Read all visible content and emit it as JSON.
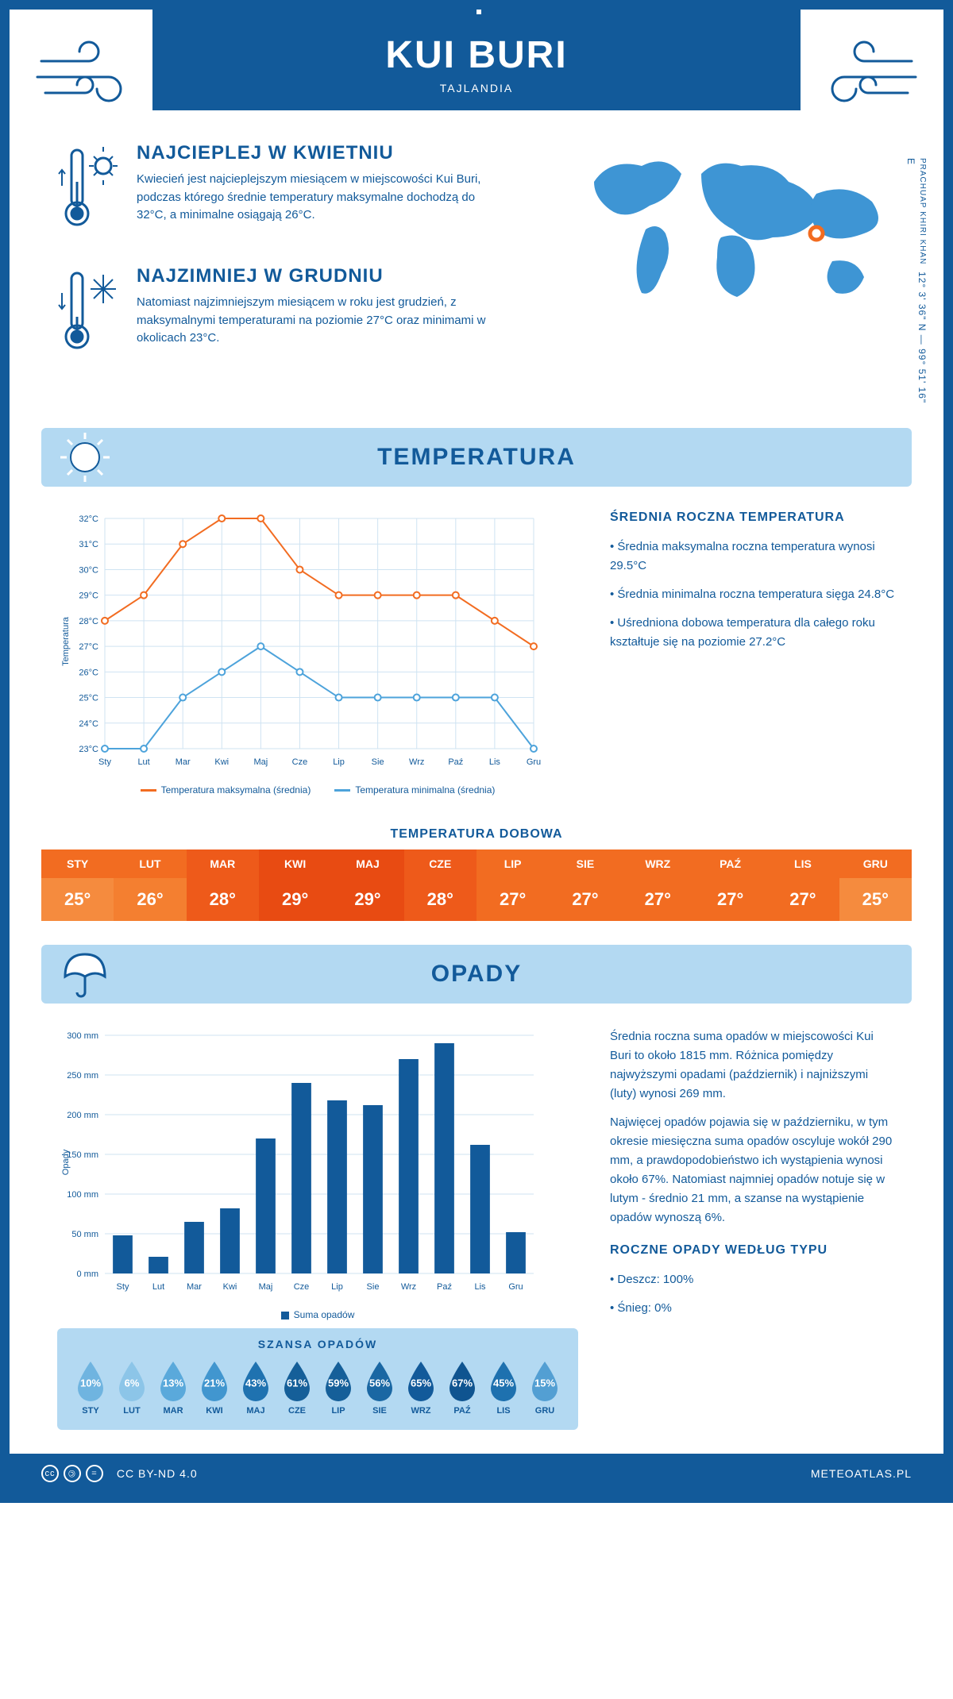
{
  "header": {
    "title": "KUI BURI",
    "subtitle": "TAJLANDIA"
  },
  "coords": {
    "line": "12° 3' 36\" N — 99° 51' 16\" E",
    "region": "PRACHUAP KHIRI KHAN"
  },
  "warmest": {
    "title": "NAJCIEPLEJ W KWIETNIU",
    "text": "Kwiecień jest najcieplejszym miesiącem w miejscowości Kui Buri, podczas którego średnie temperatury maksymalne dochodzą do 32°C, a minimalne osiągają 26°C."
  },
  "coldest": {
    "title": "NAJZIMNIEJ W GRUDNIU",
    "text": "Natomiast najzimniejszym miesiącem w roku jest grudzień, z maksymalnymi temperaturami na poziomie 27°C oraz minimami w okolicach 23°C."
  },
  "temp_section": {
    "banner": "TEMPERATURA",
    "side_title": "ŚREDNIA ROCZNA TEMPERATURA",
    "bullets": [
      "• Średnia maksymalna roczna temperatura wynosi 29.5°C",
      "• Średnia minimalna roczna temperatura sięga 24.8°C",
      "• Uśredniona dobowa temperatura dla całego roku kształtuje się na poziomie 27.2°C"
    ],
    "chart": {
      "type": "line",
      "months": [
        "Sty",
        "Lut",
        "Mar",
        "Kwi",
        "Maj",
        "Cze",
        "Lip",
        "Sie",
        "Wrz",
        "Paź",
        "Lis",
        "Gru"
      ],
      "ylabel": "Temperatura",
      "ylim": [
        23,
        32
      ],
      "ytick_step": 1,
      "series": [
        {
          "name": "Temperatura maksymalna (średnia)",
          "color": "#f26c21",
          "values": [
            28,
            29,
            31,
            32,
            32,
            30,
            29,
            29,
            29,
            29,
            28,
            27
          ]
        },
        {
          "name": "Temperatura minimalna (średnia)",
          "color": "#4da3db",
          "values": [
            23,
            23,
            25,
            26,
            27,
            26,
            25,
            25,
            25,
            25,
            25,
            23
          ]
        }
      ],
      "grid_color": "#cfe3f2",
      "background_color": "#ffffff",
      "line_width": 2,
      "marker": "circle",
      "marker_size": 4
    },
    "dobowa_title": "TEMPERATURA DOBOWA",
    "daily_table": {
      "months": [
        "STY",
        "LUT",
        "MAR",
        "KWI",
        "MAJ",
        "CZE",
        "LIP",
        "SIE",
        "WRZ",
        "PAŹ",
        "LIS",
        "GRU"
      ],
      "values": [
        "25°",
        "26°",
        "28°",
        "29°",
        "29°",
        "28°",
        "27°",
        "27°",
        "27°",
        "27°",
        "27°",
        "25°"
      ],
      "header_colors": [
        "#f26c21",
        "#f26c21",
        "#ee5a1a",
        "#e84b12",
        "#e84b12",
        "#ee5a1a",
        "#f26c21",
        "#f26c21",
        "#f26c21",
        "#f26c21",
        "#f26c21",
        "#f26c21"
      ],
      "value_colors": [
        "#f58b3e",
        "#f47f30",
        "#ee5a1a",
        "#e84b12",
        "#e84b12",
        "#ee5a1a",
        "#f26c21",
        "#f26c21",
        "#f26c21",
        "#f26c21",
        "#f26c21",
        "#f58b3e"
      ]
    }
  },
  "rain_section": {
    "banner": "OPADY",
    "chart": {
      "type": "bar",
      "months": [
        "Sty",
        "Lut",
        "Mar",
        "Kwi",
        "Maj",
        "Cze",
        "Lip",
        "Sie",
        "Wrz",
        "Paź",
        "Lis",
        "Gru"
      ],
      "ylabel": "Opady",
      "values": [
        48,
        21,
        65,
        82,
        170,
        240,
        218,
        212,
        270,
        290,
        162,
        52
      ],
      "ylim": [
        0,
        300
      ],
      "ytick_step": 50,
      "bar_color": "#125a9a",
      "grid_color": "#cfe3f2",
      "legend": "Suma opadów",
      "bar_width": 0.55
    },
    "side_paras": [
      "Średnia roczna suma opadów w miejscowości Kui Buri to około 1815 mm. Różnica pomiędzy najwyższymi opadami (październik) i najniższymi (luty) wynosi 269 mm.",
      "Najwięcej opadów pojawia się w październiku, w tym okresie miesięczna suma opadów oscyluje wokół 290 mm, a prawdopodobieństwo ich wystąpienia wynosi około 67%. Natomiast najmniej opadów notuje się w lutym - średnio 21 mm, a szanse na wystąpienie opadów wynoszą 6%."
    ],
    "chance_title": "SZANSA OPADÓW",
    "chance": {
      "months": [
        "STY",
        "LUT",
        "MAR",
        "KWI",
        "MAJ",
        "CZE",
        "LIP",
        "SIE",
        "WRZ",
        "PAŹ",
        "LIS",
        "GRU"
      ],
      "pct": [
        "10%",
        "6%",
        "13%",
        "21%",
        "43%",
        "61%",
        "59%",
        "56%",
        "65%",
        "67%",
        "45%",
        "15%"
      ],
      "colors": [
        "#6fb4e0",
        "#8cc5e8",
        "#5aa9db",
        "#4196cf",
        "#1f72b0",
        "#155f99",
        "#155f99",
        "#1a67a3",
        "#125a9a",
        "#0f5490",
        "#1e71af",
        "#539fd3"
      ]
    },
    "type_title": "ROCZNE OPADY WEDŁUG TYPU",
    "type_bullets": [
      "• Deszcz: 100%",
      "• Śnieg: 0%"
    ]
  },
  "footer": {
    "license": "CC BY-ND 4.0",
    "site": "METEOATLAS.PL"
  }
}
